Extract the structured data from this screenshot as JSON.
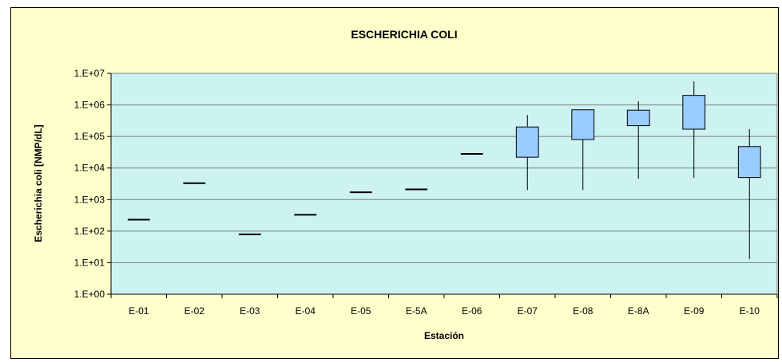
{
  "chart_data": {
    "type": "boxplot",
    "title": "ESCHERICHIA COLI",
    "xlabel": "Estación",
    "ylabel": "Escherichia coli [NMP/dL]",
    "yscale": "log",
    "ylim": [
      1,
      10000000
    ],
    "y_tick_labels": [
      "1.E+00",
      "1.E+01",
      "1.E+02",
      "1.E+03",
      "1.E+04",
      "1.E+05",
      "1.E+06",
      "1.E+07"
    ],
    "categories": [
      "E-01",
      "E-02",
      "E-03",
      "E-04",
      "E-05",
      "E-5A",
      "E-06",
      "E-07",
      "E-08",
      "E-8A",
      "E-09",
      "E-10"
    ],
    "boxes": [
      {
        "min": 230,
        "q1": 230,
        "q3": 230,
        "max": 230
      },
      {
        "min": 3300,
        "q1": 3300,
        "q3": 3300,
        "max": 3300
      },
      {
        "min": 79,
        "q1": 79,
        "q3": 79,
        "max": 79
      },
      {
        "min": 330,
        "q1": 330,
        "q3": 330,
        "max": 330
      },
      {
        "min": 1700,
        "q1": 1700,
        "q3": 1700,
        "max": 1700
      },
      {
        "min": 2100,
        "q1": 2100,
        "q3": 2100,
        "max": 2100
      },
      {
        "min": 28000,
        "q1": 28000,
        "q3": 28000,
        "max": 28000
      },
      {
        "min": 2000,
        "q1": 22000,
        "q3": 200000,
        "max": 480000
      },
      {
        "min": 2000,
        "q1": 80000,
        "q3": 700000,
        "max": 700000
      },
      {
        "min": 4600,
        "q1": 220000,
        "q3": 680000,
        "max": 1300000
      },
      {
        "min": 4900,
        "q1": 170000,
        "q3": 2000000,
        "max": 5600000
      },
      {
        "min": 13,
        "q1": 5000,
        "q3": 48000,
        "max": 170000
      }
    ],
    "grid": true,
    "colors": {
      "background": "#ffffcc",
      "plot_area": "#ccf2f2",
      "box_fill": "#99ccff",
      "gridline": "#7f7f7f"
    }
  }
}
